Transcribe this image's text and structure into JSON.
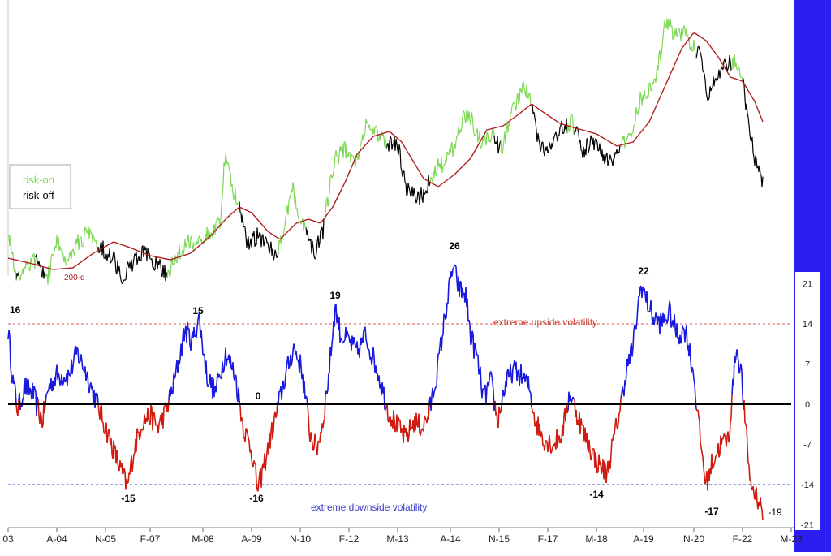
{
  "chart_data": [
    {
      "type": "line",
      "title": "",
      "legend": {
        "placement": "left",
        "entries": [
          {
            "label": "risk-on",
            "color": "#7ed957"
          },
          {
            "label": "risk-off",
            "color": "#000000"
          }
        ]
      },
      "moving_average_label": "200-d",
      "series": [
        {
          "name": "risk-on",
          "color": "#7ed957"
        },
        {
          "name": "risk-off",
          "color": "#000000"
        },
        {
          "name": "200-d",
          "color": "#b02020"
        }
      ],
      "grid": false,
      "y_axis_labels": false
    },
    {
      "type": "line",
      "title": "",
      "x_ticks": [
        "03",
        "A-04",
        "N-05",
        "F-07",
        "M-08",
        "A-09",
        "N-10",
        "F-12",
        "M-13",
        "A-14",
        "N-15",
        "F-17",
        "M-18",
        "A-19",
        "N-20",
        "F-22",
        "M-23"
      ],
      "y_ticks": [
        21,
        14,
        7,
        0,
        -7,
        -14,
        -21
      ],
      "ylim": [
        -21,
        28
      ],
      "reference_lines": [
        {
          "value": 14,
          "label": "extreme upside volatility",
          "color": "#e05555"
        },
        {
          "value": -14,
          "label": "extreme downside volatility",
          "color": "#4040cc"
        },
        {
          "value": 0,
          "label": "",
          "color": "#000000"
        }
      ],
      "series": [
        {
          "name": "",
          "color_positive": "#1a1adf",
          "color_negative": "#d01c10"
        }
      ],
      "annotations": [
        {
          "label": "16",
          "value": 16
        },
        {
          "label": "15",
          "value": 15
        },
        {
          "label": "-15",
          "value": -15
        },
        {
          "label": "0",
          "value": 0
        },
        {
          "label": "-16",
          "value": -16
        },
        {
          "label": "19",
          "value": 19
        },
        {
          "label": "26",
          "value": 26
        },
        {
          "label": "22",
          "value": 22
        },
        {
          "label": "-14",
          "value": -14
        },
        {
          "label": "-17",
          "value": -17
        },
        {
          "label": "-19",
          "value": -19
        }
      ],
      "grid": false
    }
  ],
  "colors": {
    "right_band": "#2b1ef0",
    "background": "#ffffff",
    "upper_border": "#cccccc"
  }
}
